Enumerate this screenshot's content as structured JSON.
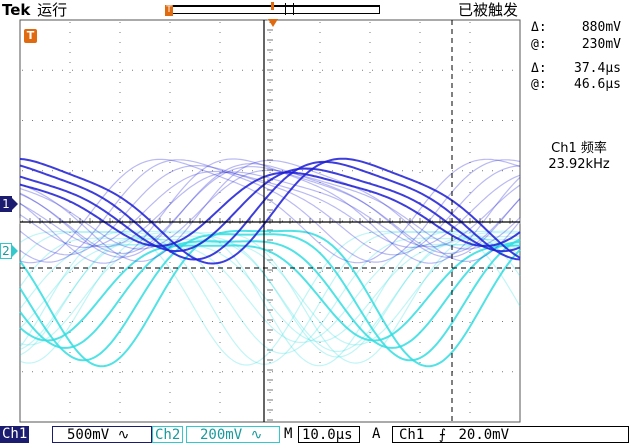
{
  "header": {
    "brand": "Tek",
    "run_state": "运行",
    "trigger_state": "已被触发"
  },
  "cursors": {
    "voltage_delta_label": "Δ:",
    "voltage_delta": "880mV",
    "voltage_at_label": "@:",
    "voltage_at": "230mV",
    "time_delta_label": "Δ:",
    "time_delta": "37.4µs",
    "time_at_label": "@:",
    "time_at": "46.6µs"
  },
  "measurement": {
    "label": "Ch1 频率",
    "value": "23.92kHz"
  },
  "markers": {
    "trigger_marker": "T",
    "ch1_marker": "1",
    "ch2_marker": "2"
  },
  "status_bar": {
    "ch1_label": "Ch1",
    "ch1_scale": "500mV",
    "ch1_coupling": "∿",
    "ch2_label": "Ch2",
    "ch2_scale": "200mV",
    "ch2_coupling": "∿",
    "timebase_label": "M",
    "timebase": "10.0µs",
    "trigger_label": "A",
    "trigger_source": "Ch1",
    "trigger_slope": "⨍",
    "trigger_level": "20.0mV"
  },
  "colors": {
    "ch1": "#1b1bd6",
    "ch2": "#33dde0",
    "grid": "#7a7a7a",
    "trigger": "#e06a10"
  }
}
